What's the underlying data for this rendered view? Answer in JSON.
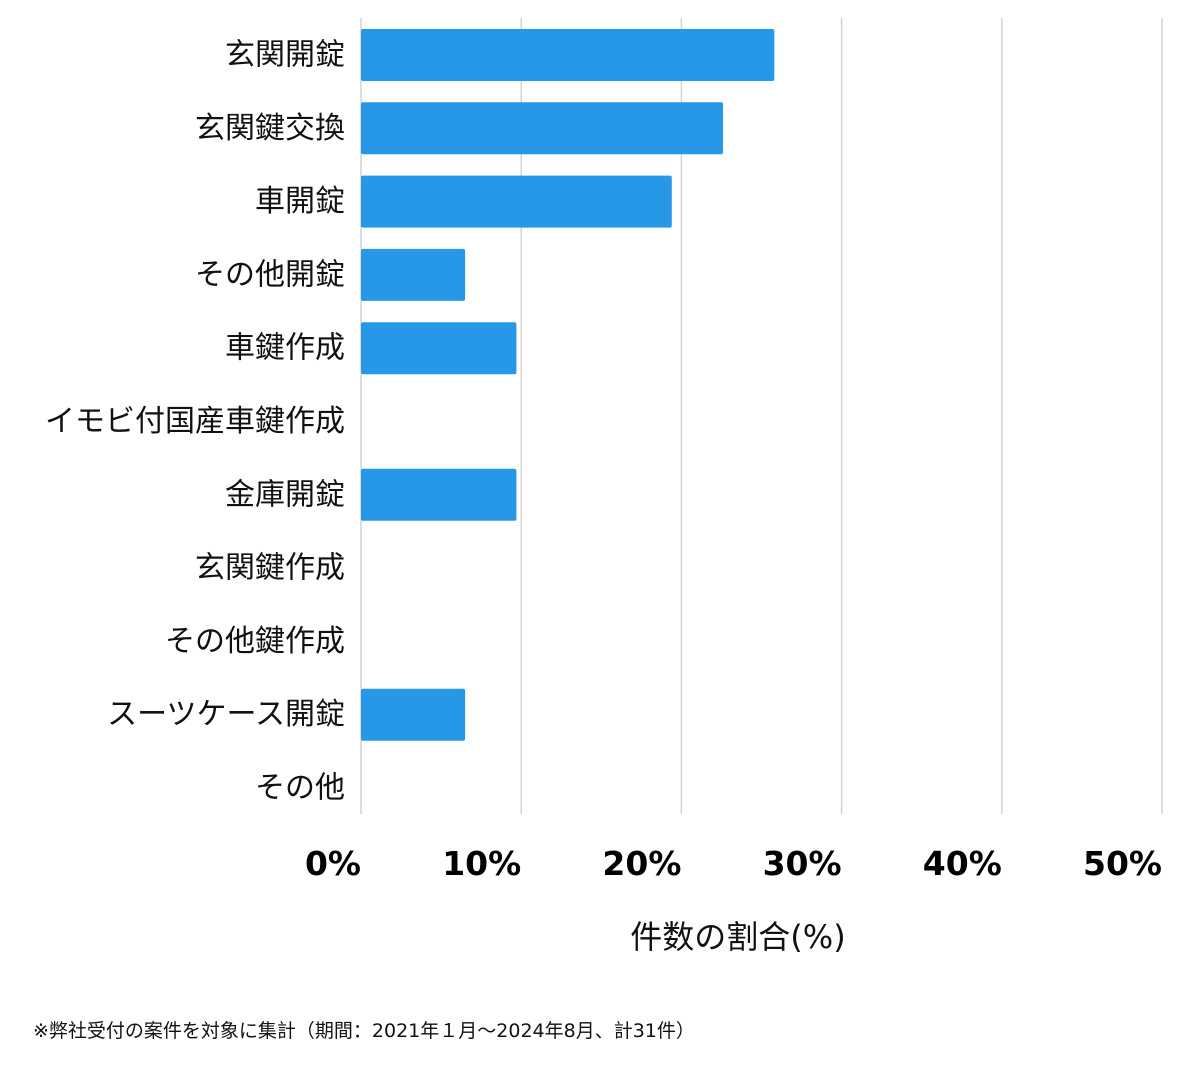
{
  "chart_data": {
    "type": "bar",
    "orientation": "horizontal",
    "categories": [
      "玄関開錠",
      "玄関鍵交換",
      "車開錠",
      "その他開錠",
      "車鍵作成",
      "イモビ付国産車鍵作成",
      "金庫開錠",
      "玄関鍵作成",
      "その他鍵作成",
      "スーツケース開錠",
      "その他"
    ],
    "values": [
      25.8,
      22.6,
      19.4,
      6.5,
      9.7,
      0,
      9.7,
      0,
      0,
      6.5,
      0
    ],
    "xlim": [
      0,
      50
    ],
    "xticks": [
      0,
      10,
      20,
      30,
      40,
      50
    ],
    "xtick_labels": [
      "0%",
      "10%",
      "20%",
      "30%",
      "40%",
      "50%"
    ],
    "xlabel": "件数の割合(%)",
    "title": "",
    "grid": "vertical",
    "bar_color": "#2797e8",
    "grid_color": "#d4d4d4"
  },
  "footnote": "※弊社受付の案件を対象に集計（期間：2021年１月～2024年8月、計31件）"
}
